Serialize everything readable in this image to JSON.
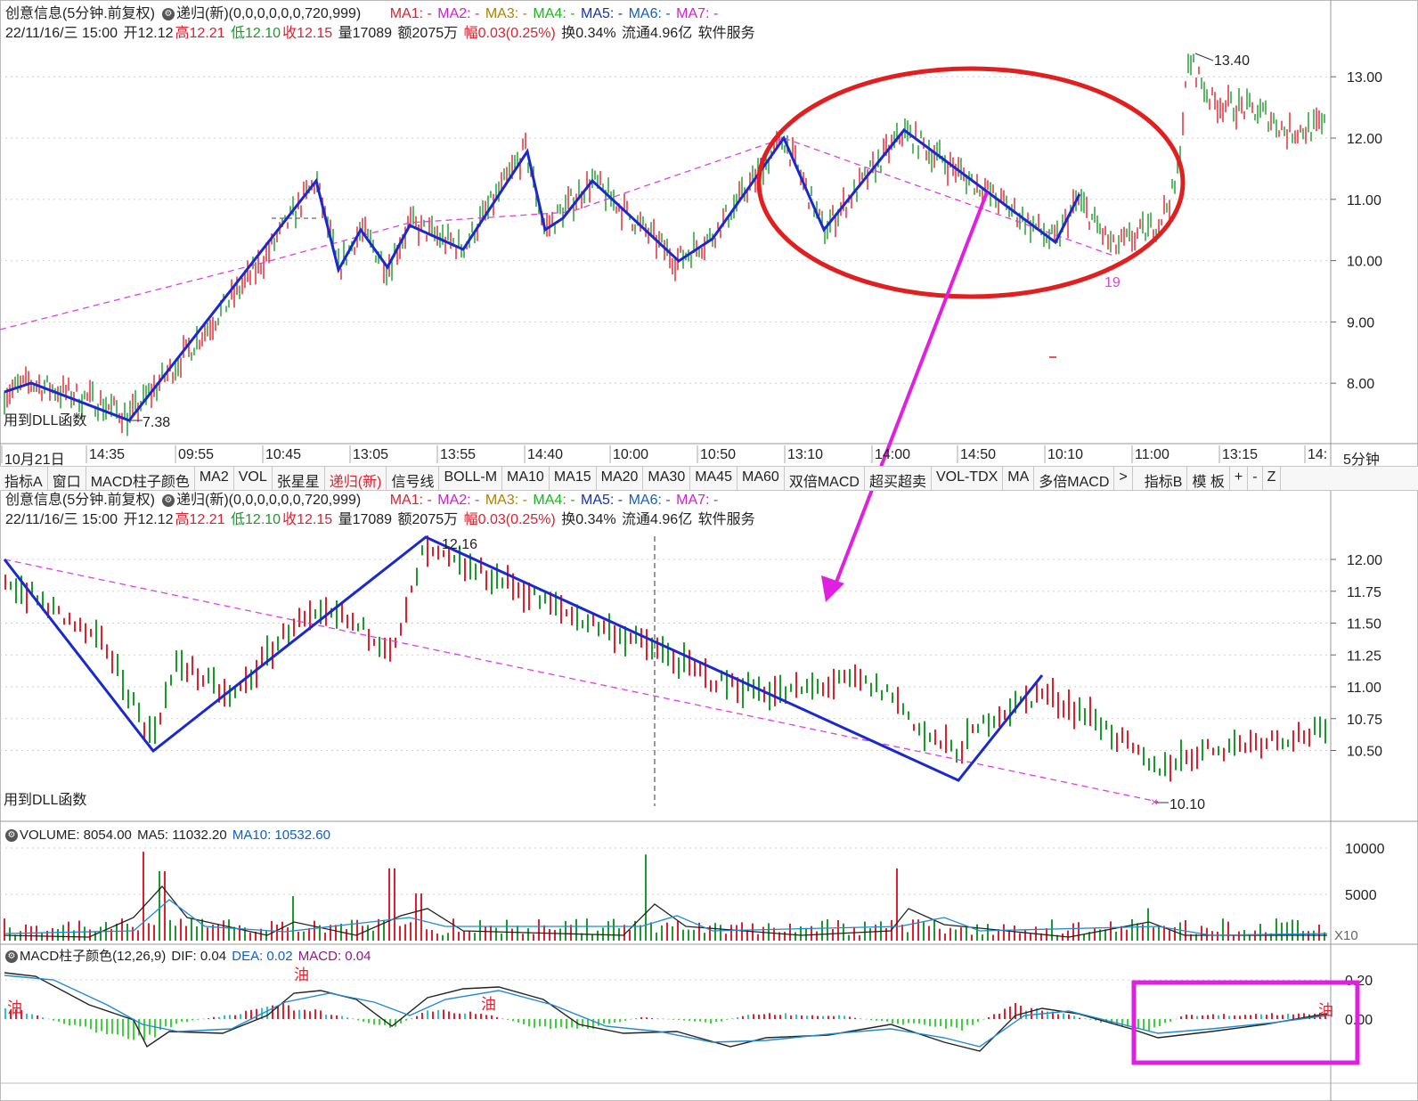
{
  "header1": {
    "stock": "创意信息(5分钟.前复权)",
    "indicator": "递归(新)(0,0,0,0,0,0,720,999)",
    "ma": [
      "MA1: -",
      "MA2: -",
      "MA3: -",
      "MA4: -",
      "MA5: -",
      "MA6: -",
      "MA7: -"
    ],
    "date": "22/11/16/三 15:00",
    "open": "开12.12",
    "high": "高12.21",
    "low": "低12.10",
    "close": "收12.15",
    "vol": "量17089",
    "amount": "额2075万",
    "change": "幅0.03(0.25%)",
    "turnover": "换0.34%",
    "float": "流通4.96亿",
    "sector": "软件服务"
  },
  "main_chart": {
    "y_ticks": [
      "13.00",
      "12.00",
      "11.00",
      "10.00",
      "9.00",
      "8.00"
    ],
    "y_values": [
      13,
      12,
      11,
      10,
      9,
      8
    ],
    "high_label": "13.40",
    "low_label": "7.38",
    "count_label": "19",
    "dll_label": "用到DLL函数"
  },
  "time_axis": [
    "10月21日",
    "14:35",
    "09:55",
    "10:45",
    "13:05",
    "13:55",
    "14:40",
    "10:00",
    "10:50",
    "13:10",
    "14:00",
    "14:50",
    "10:10",
    "11:00",
    "13:15",
    "14:"
  ],
  "period": "5分钟",
  "toolbar": [
    "指标A",
    "窗口",
    "MACD柱子颜色",
    "MA2",
    "VOL",
    "张星星",
    "递归(新)",
    "信号线",
    "BOLL-M",
    "MA10",
    "MA15",
    "MA20",
    "MA30",
    "MA45",
    "MA60",
    "双倍MACD",
    "超买超卖",
    "VOL-TDX",
    "MA",
    "多倍MACD",
    ">",
    "指标B",
    "模 板",
    "+",
    "-",
    "Z"
  ],
  "header2": {
    "stock": "创意信息(5分钟.前复权)",
    "indicator": "递归(新)(0,0,0,0,0,0,720,999)",
    "ma": [
      "MA1: -",
      "MA2: -",
      "MA3: -",
      "MA4: -",
      "MA5: -",
      "MA6: -",
      "MA7: -"
    ],
    "date": "22/11/16/三 15:00",
    "open": "开12.12",
    "high": "高12.21",
    "low": "低12.10",
    "close": "收12.15",
    "vol": "量17089",
    "amount": "额2075万",
    "change": "幅0.03(0.25%)",
    "turnover": "换0.34%",
    "float": "流通4.96亿",
    "sector": "软件服务"
  },
  "zoom_chart": {
    "y_ticks": [
      "12.00",
      "11.75",
      "11.50",
      "11.25",
      "11.00",
      "10.75",
      "10.50"
    ],
    "y_values": [
      12.0,
      11.75,
      11.5,
      11.25,
      11.0,
      10.75,
      10.5
    ],
    "high_label": "12.16",
    "low_label": "10.10",
    "dll_label": "用到DLL函数"
  },
  "volume": {
    "label": "VOLUME: 8054.00",
    "ma5": "MA5: 11032.20",
    "ma10": "MA10: 10532.60",
    "y_ticks": [
      "10000",
      "5000"
    ],
    "y_values": [
      10000,
      5000
    ],
    "scale": "X10"
  },
  "macd": {
    "label": "MACD柱子颜色(12,26,9)",
    "dif": "DIF: 0.04",
    "dea": "DEA: 0.02",
    "macd": "MACD: 0.04",
    "y_ticks": [
      "0.20",
      "0.00"
    ],
    "y_values": [
      0.2,
      0.0
    ],
    "marks": [
      "油",
      "油",
      "油",
      "油"
    ]
  },
  "colors": {
    "up": "#e0202e",
    "down": "#1a9a2a",
    "zigzag": "#1a28d0",
    "trend": "#e040e0",
    "annotation_ellipse": "#e02020",
    "annotation_arrow": "#e020e0",
    "annotation_box": "#e020e0"
  }
}
